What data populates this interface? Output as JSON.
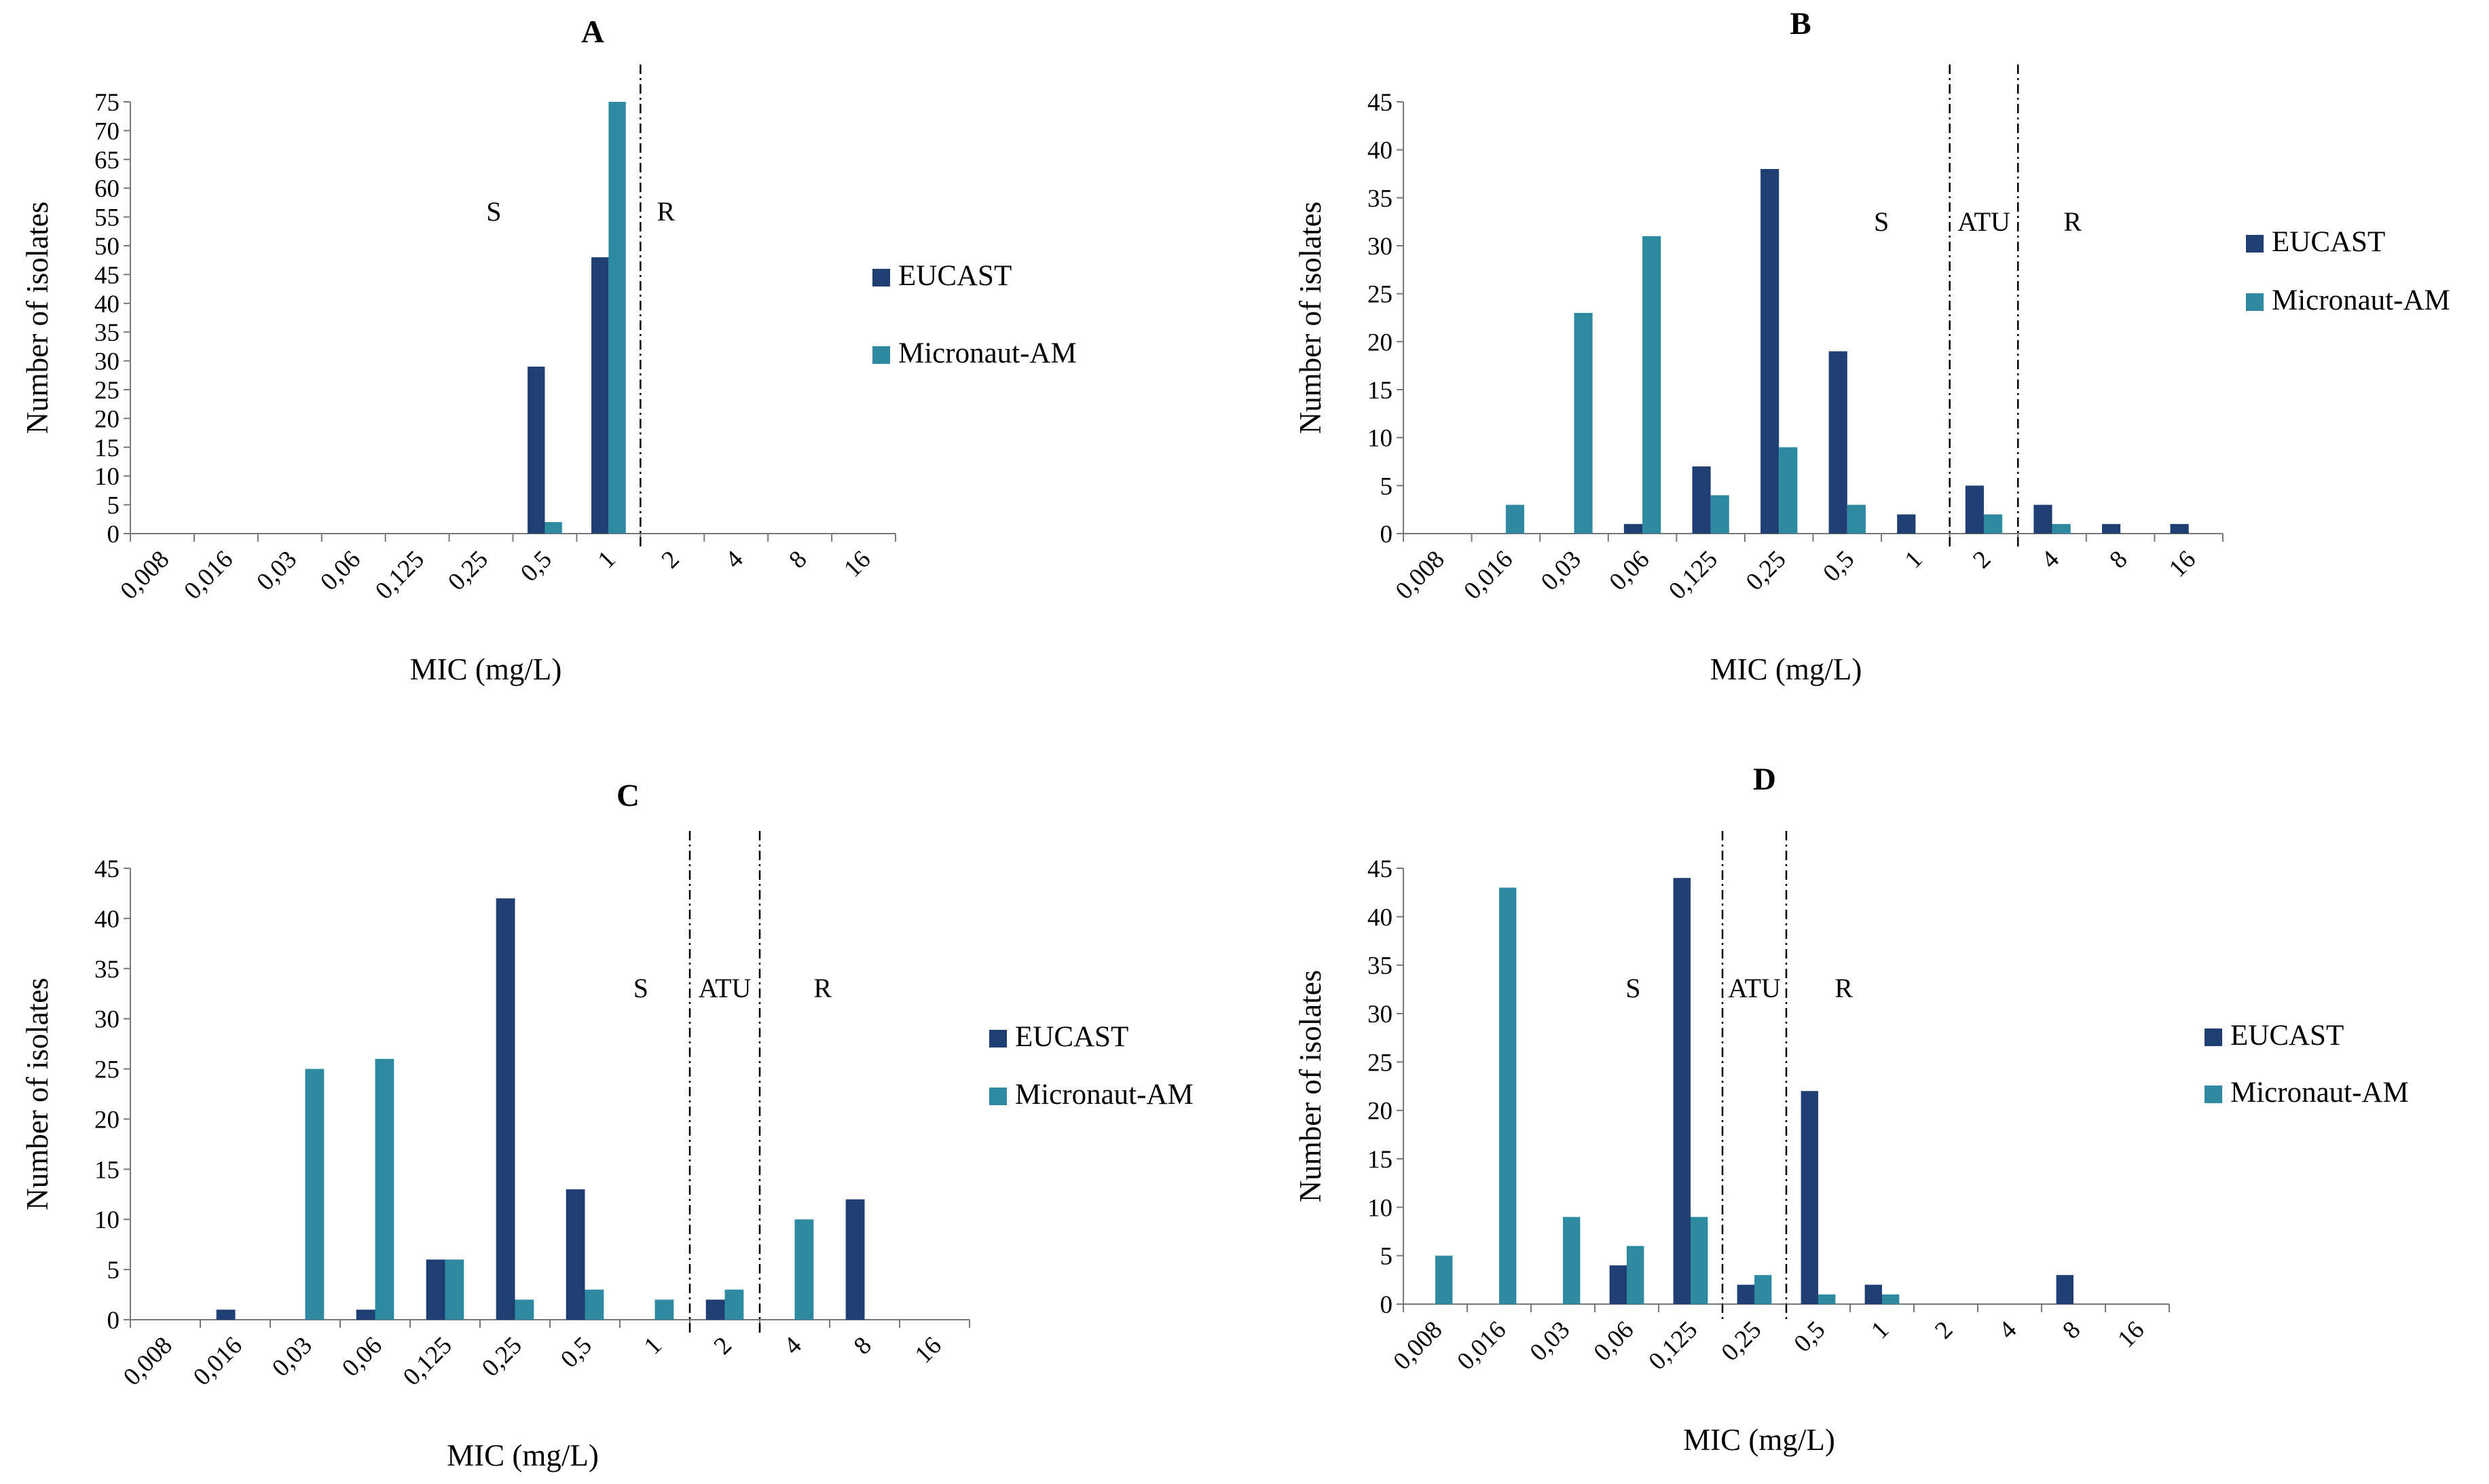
{
  "chart_data": [
    {
      "type": "bar",
      "panel": "A",
      "title": "A",
      "xlabel": "MIC (mg/L)",
      "ylabel": "Number of isolates",
      "ylim": [
        0,
        75
      ],
      "yticks": [
        0,
        5,
        10,
        15,
        20,
        25,
        30,
        35,
        40,
        45,
        50,
        55,
        60,
        65,
        70,
        75
      ],
      "categories": [
        "0,008",
        "0,016",
        "0,03",
        "0,06",
        "0,125",
        "0,25",
        "0,5",
        "1",
        "2",
        "4",
        "8",
        "16"
      ],
      "series": [
        {
          "name": "EUCAST",
          "color": "#1f3f73",
          "values": [
            0,
            0,
            0,
            0,
            0,
            0,
            29,
            48,
            0,
            0,
            0,
            0
          ]
        },
        {
          "name": "Micronaut-AM",
          "color": "#2e8aa0",
          "values": [
            0,
            0,
            0,
            0,
            0,
            0,
            2,
            75,
            0,
            0,
            0,
            0
          ]
        }
      ],
      "breakpoints": [
        8
      ],
      "regions": [
        {
          "label": "S",
          "pos": 5.7
        },
        {
          "label": "R",
          "pos": 8.4
        }
      ]
    },
    {
      "type": "bar",
      "panel": "B",
      "title": "B",
      "xlabel": "MIC (mg/L)",
      "ylabel": "Number of isolates",
      "ylim": [
        0,
        45
      ],
      "yticks": [
        0,
        5,
        10,
        15,
        20,
        25,
        30,
        35,
        40,
        45
      ],
      "categories": [
        "0,008",
        "0,016",
        "0,03",
        "0,06",
        "0,125",
        "0,25",
        "0,5",
        "1",
        "2",
        "4",
        "8",
        "16"
      ],
      "series": [
        {
          "name": "EUCAST",
          "color": "#1f3f73",
          "values": [
            0,
            0,
            0,
            1,
            7,
            38,
            19,
            2,
            5,
            3,
            1,
            1
          ]
        },
        {
          "name": "Micronaut-AM",
          "color": "#2e8aa0",
          "values": [
            0,
            3,
            23,
            31,
            4,
            9,
            3,
            0,
            2,
            1,
            0,
            0
          ]
        }
      ],
      "breakpoints": [
        8,
        9
      ],
      "regions": [
        {
          "label": "S",
          "pos": 7.0
        },
        {
          "label": "ATU",
          "pos": 8.5
        },
        {
          "label": "R",
          "pos": 9.8
        }
      ]
    },
    {
      "type": "bar",
      "panel": "C",
      "title": "C",
      "xlabel": "MIC (mg/L)",
      "ylabel": "Number of isolates",
      "ylim": [
        0,
        45
      ],
      "yticks": [
        0,
        5,
        10,
        15,
        20,
        25,
        30,
        35,
        40,
        45
      ],
      "categories": [
        "0,008",
        "0,016",
        "0,03",
        "0,06",
        "0,125",
        "0,25",
        "0,5",
        "1",
        "2",
        "4",
        "8",
        "16"
      ],
      "series": [
        {
          "name": "EUCAST",
          "color": "#1f3f73",
          "values": [
            0,
            1,
            0,
            1,
            6,
            42,
            13,
            0,
            2,
            0,
            12,
            0
          ]
        },
        {
          "name": "Micronaut-AM",
          "color": "#2e8aa0",
          "values": [
            0,
            0,
            25,
            26,
            6,
            2,
            3,
            2,
            3,
            10,
            0,
            0
          ]
        }
      ],
      "breakpoints": [
        8,
        9
      ],
      "regions": [
        {
          "label": "S",
          "pos": 7.3
        },
        {
          "label": "ATU",
          "pos": 8.5
        },
        {
          "label": "R",
          "pos": 9.9
        }
      ]
    },
    {
      "type": "bar",
      "panel": "D",
      "title": "D",
      "xlabel": "MIC (mg/L)",
      "ylabel": "Number of isolates",
      "ylim": [
        0,
        45
      ],
      "yticks": [
        0,
        5,
        10,
        15,
        20,
        25,
        30,
        35,
        40,
        45
      ],
      "categories": [
        "0,008",
        "0,016",
        "0,03",
        "0,06",
        "0,125",
        "0,25",
        "0,5",
        "1",
        "2",
        "4",
        "8",
        "16"
      ],
      "series": [
        {
          "name": "EUCAST",
          "color": "#1f3f73",
          "values": [
            0,
            0,
            0,
            4,
            44,
            2,
            22,
            2,
            0,
            0,
            3,
            0
          ]
        },
        {
          "name": "Micronaut-AM",
          "color": "#2e8aa0",
          "values": [
            5,
            43,
            9,
            6,
            9,
            3,
            1,
            1,
            0,
            0,
            0,
            0
          ]
        }
      ],
      "breakpoints": [
        5,
        6
      ],
      "regions": [
        {
          "label": "S",
          "pos": 3.6
        },
        {
          "label": "ATU",
          "pos": 5.5
        },
        {
          "label": "R",
          "pos": 6.9
        }
      ]
    }
  ]
}
